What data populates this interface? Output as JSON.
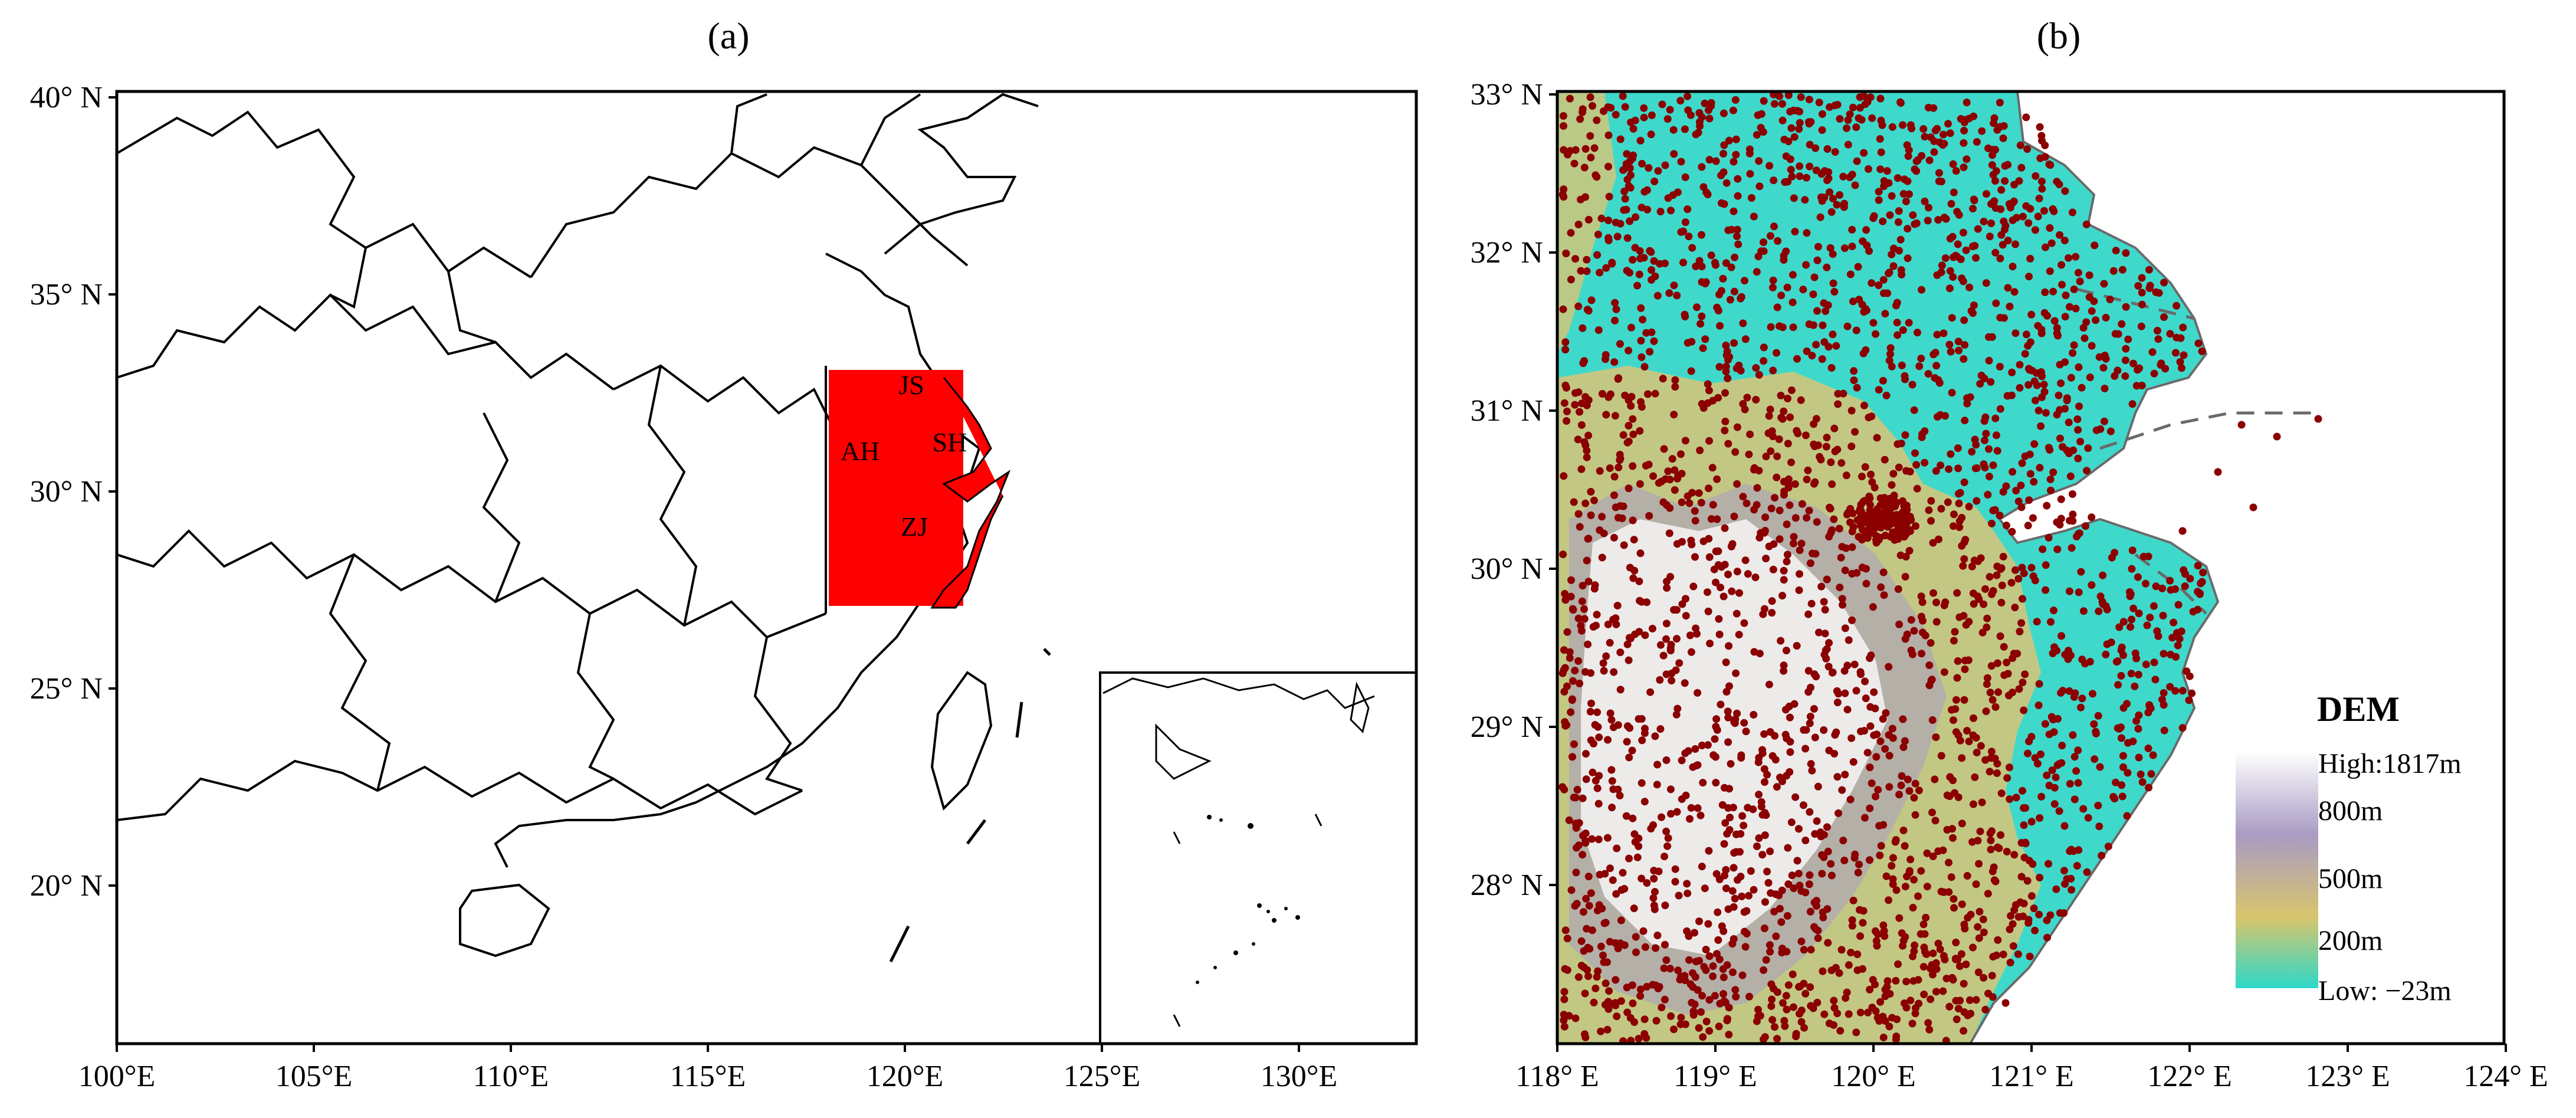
{
  "panel_a": {
    "label": "(a)",
    "lat_ticks": [
      "40° N",
      "35° N",
      "30° N",
      "25° N",
      "20° N"
    ],
    "lon_ticks": [
      "100°E",
      "105°E",
      "110°E",
      "115°E",
      "120°E",
      "125°E",
      "130°E"
    ],
    "region_labels": [
      "JS",
      "AH",
      "SH",
      "ZJ"
    ],
    "colors": {
      "highlight": "#ff0000",
      "border": "#000000"
    }
  },
  "panel_b": {
    "label": "(b)",
    "lat_ticks": [
      "33° N",
      "32° N",
      "31° N",
      "30° N",
      "29° N",
      "28° N"
    ],
    "lon_ticks": [
      "118° E",
      "119° E",
      "120° E",
      "121° E",
      "122° E",
      "123° E",
      "124° E"
    ],
    "legend": {
      "title": "DEM",
      "labels": [
        "High:1817m",
        "800m",
        "500m",
        "200m",
        "Low: −23m"
      ],
      "colors": [
        "#ffffff",
        "#a99bc4",
        "#d9c56d",
        "#2ed8c8"
      ]
    },
    "colors": {
      "station": "#8b0000",
      "low_land": "#3fd9cb",
      "mid_land": "#c9c77e",
      "high_land": "#ffffff"
    }
  }
}
